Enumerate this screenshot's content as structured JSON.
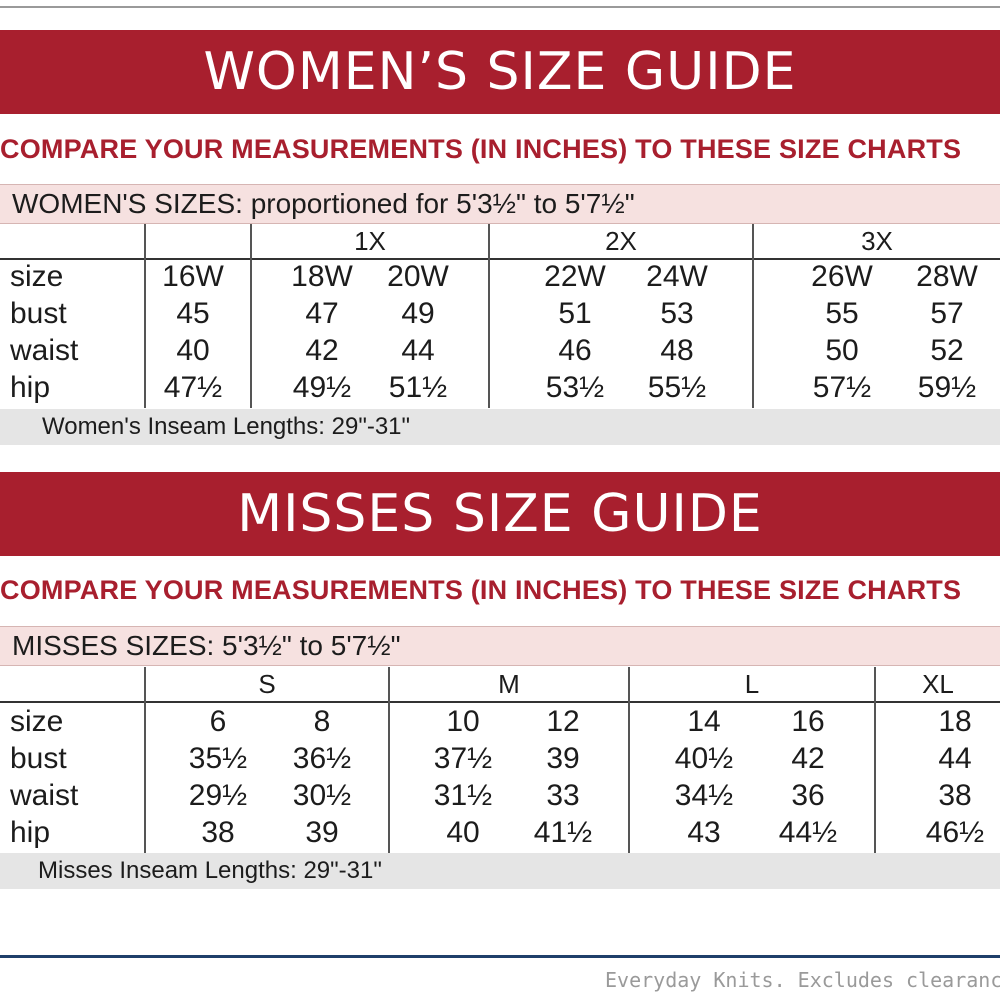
{
  "women": {
    "title": "WOMEN’S SIZE GUIDE",
    "compare": "COMPARE YOUR MEASUREMENTS (IN INCHES) TO THESE SIZE CHARTS",
    "band": "WOMEN'S SIZES: proportioned for 5'3½\" to 5'7½\"",
    "groups": [
      "1X",
      "2X",
      "3X"
    ],
    "row_labels": [
      "size",
      "bust",
      "waist",
      "hip"
    ],
    "columns": [
      [
        "16W",
        "45",
        "40",
        "47½"
      ],
      [
        "18W",
        "47",
        "42",
        "49½"
      ],
      [
        "20W",
        "49",
        "44",
        "51½"
      ],
      [
        "22W",
        "51",
        "46",
        "53½"
      ],
      [
        "24W",
        "53",
        "48",
        "55½"
      ],
      [
        "26W",
        "55",
        "50",
        "57½"
      ],
      [
        "28W",
        "57",
        "52",
        "59½"
      ]
    ],
    "inseam": "Women's Inseam Lengths: 29\"-31\""
  },
  "misses": {
    "title": "MISSES SIZE GUIDE",
    "compare": "COMPARE YOUR MEASUREMENTS (IN INCHES) TO THESE SIZE CHARTS",
    "band": "MISSES SIZES: 5'3½\" to 5'7½\"",
    "groups": [
      "S",
      "M",
      "L",
      "XL"
    ],
    "row_labels": [
      "size",
      "bust",
      "waist",
      "hip"
    ],
    "columns": [
      [
        "6",
        "35½",
        "29½",
        "38"
      ],
      [
        "8",
        "36½",
        "30½",
        "39"
      ],
      [
        "10",
        "37½",
        "31½",
        "40"
      ],
      [
        "12",
        "39",
        "33",
        "41½"
      ],
      [
        "14",
        "40½",
        "34½",
        "43"
      ],
      [
        "16",
        "42",
        "36",
        "44½"
      ],
      [
        "18",
        "44",
        "38",
        "46½"
      ]
    ],
    "inseam": "Misses Inseam Lengths: 29\"-31\""
  },
  "footer_note": "Everyday Knits. Excludes clearance",
  "colors": {
    "brand_red": "#a81f2e",
    "band_pink": "#f6e1e0",
    "inseam_gray": "#e5e5e5"
  }
}
